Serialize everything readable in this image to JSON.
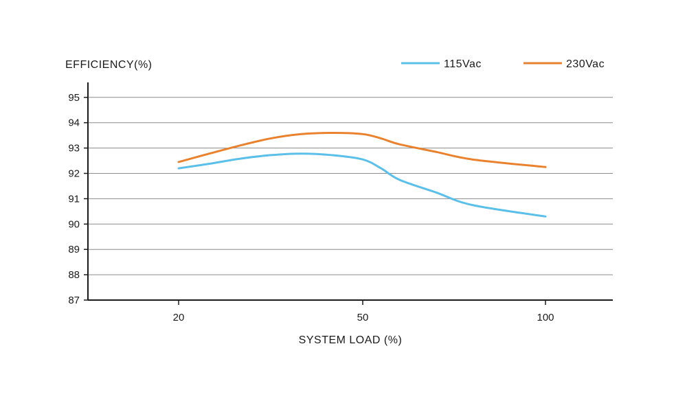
{
  "chart_data": {
    "type": "line",
    "ylabel": "EFFICIENCY(%)",
    "xlabel": "SYSTEM LOAD (%)",
    "x_ticks": [
      20,
      50,
      100
    ],
    "y_ticks": [
      87,
      88,
      89,
      90,
      91,
      92,
      93,
      94,
      95
    ],
    "ylim": [
      87,
      95.6
    ],
    "grid": true,
    "legend_position": "top-right",
    "series": [
      {
        "name": "115Vac",
        "color": "#5bbfe8",
        "points": [
          [
            20,
            92.2
          ],
          [
            25,
            92.38
          ],
          [
            30,
            92.58
          ],
          [
            35,
            92.72
          ],
          [
            40,
            92.78
          ],
          [
            45,
            92.72
          ],
          [
            50,
            92.55
          ],
          [
            55,
            92.2
          ],
          [
            60,
            91.75
          ],
          [
            70,
            91.25
          ],
          [
            80,
            90.75
          ],
          [
            100,
            90.3
          ]
        ]
      },
      {
        "name": "230Vac",
        "color": "#e8822f",
        "points": [
          [
            20,
            92.45
          ],
          [
            25,
            92.78
          ],
          [
            30,
            93.1
          ],
          [
            35,
            93.38
          ],
          [
            40,
            93.55
          ],
          [
            45,
            93.6
          ],
          [
            50,
            93.55
          ],
          [
            55,
            93.38
          ],
          [
            60,
            93.15
          ],
          [
            70,
            92.85
          ],
          [
            80,
            92.55
          ],
          [
            100,
            92.25
          ]
        ]
      }
    ]
  }
}
